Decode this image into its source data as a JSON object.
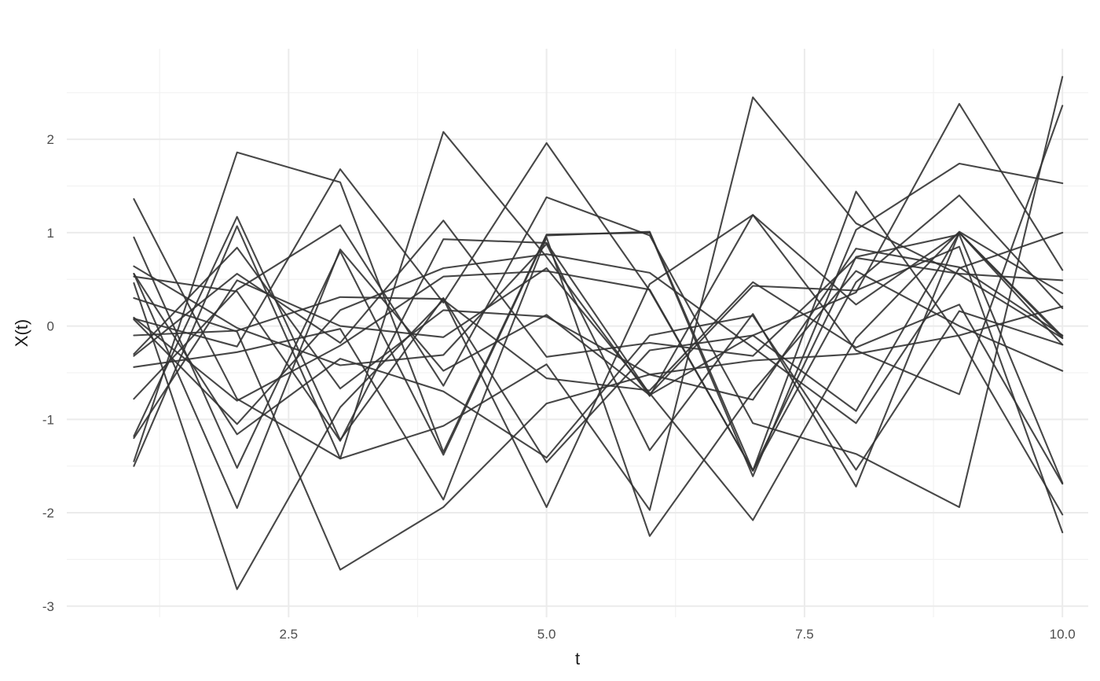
{
  "chart_data": {
    "type": "line",
    "title": "",
    "xlabel": "t",
    "ylabel": "X(t)",
    "xlim": [
      0.35,
      10.25
    ],
    "ylim": [
      -3.12,
      2.97
    ],
    "x_ticks": [
      2.5,
      5.0,
      7.5,
      10.0
    ],
    "x_tick_labels": [
      "2.5",
      "5.0",
      "7.5",
      "10.0"
    ],
    "y_ticks": [
      -3,
      -2,
      -1,
      0,
      1,
      2
    ],
    "y_tick_labels": [
      "-3",
      "-2",
      "-1",
      "0",
      "1",
      "2"
    ],
    "grid": true,
    "legend": "none",
    "line_color": "#333333",
    "line_opacity": 0.9,
    "x": [
      1,
      2,
      3,
      4,
      5,
      6,
      7,
      8,
      9,
      10
    ],
    "series": [
      {
        "values": [
          1.36,
          -0.78,
          -1.42,
          -1.07,
          -0.41,
          -1.97,
          2.45,
          1.1,
          0.55,
          -0.13
        ]
      },
      {
        "values": [
          0.95,
          -1.52,
          0.8,
          -1.38,
          0.97,
          1.01,
          -1.55,
          1.44,
          -0.12,
          -2.02
        ]
      },
      {
        "values": [
          -1.5,
          1.07,
          -1.42,
          2.08,
          0.74,
          -0.75,
          1.19,
          0.23,
          1.0,
          -0.2
        ]
      },
      {
        "values": [
          0.08,
          -0.22,
          1.68,
          0.25,
          1.96,
          0.38,
          -1.55,
          0.74,
          0.98,
          -1.68
        ]
      },
      {
        "values": [
          -1.45,
          1.86,
          1.54,
          -1.35,
          0.98,
          1.0,
          -1.61,
          1.03,
          1.74,
          1.53
        ]
      },
      {
        "values": [
          -1.18,
          1.17,
          -1.22,
          0.3,
          -1.46,
          -0.26,
          -0.1,
          0.36,
          2.38,
          0.6
        ]
      },
      {
        "values": [
          0.53,
          0.37,
          -1.23,
          0.93,
          0.89,
          -0.73,
          0.43,
          0.38,
          0.85,
          -2.21
        ]
      },
      {
        "values": [
          -0.32,
          0.56,
          -0.18,
          1.13,
          -0.33,
          -0.18,
          -0.32,
          0.73,
          0.56,
          0.49
        ]
      },
      {
        "values": [
          0.56,
          -1.95,
          0.82,
          -0.48,
          0.12,
          -0.74,
          -0.1,
          -0.91,
          1.0,
          -0.11
        ]
      },
      {
        "values": [
          0.09,
          -0.8,
          -0.21,
          0.53,
          0.59,
          0.39,
          -1.55,
          0.47,
          1.4,
          0.19
        ]
      },
      {
        "values": [
          -0.1,
          -0.05,
          0.31,
          0.29,
          -1.94,
          0.45,
          1.19,
          -0.26,
          -0.73,
          2.36
        ]
      },
      {
        "values": [
          0.3,
          -0.06,
          -2.61,
          -1.94,
          -0.83,
          -0.52,
          -0.37,
          -0.3,
          -0.1,
          0.21
        ]
      },
      {
        "values": [
          -0.78,
          0.39,
          1.08,
          -0.64,
          1.38,
          0.97,
          -1.04,
          -1.37,
          -1.94,
          2.67
        ]
      },
      {
        "values": [
          0.64,
          -0.02,
          -0.42,
          -0.31,
          0.88,
          -1.33,
          0.13,
          -1.72,
          1.0,
          -0.13
        ]
      },
      {
        "values": [
          0.07,
          -1.05,
          0.17,
          0.62,
          0.77,
          0.57,
          -0.23,
          -1.04,
          0.62,
          1.0
        ]
      },
      {
        "values": [
          -0.3,
          0.84,
          -0.67,
          0.17,
          0.1,
          -0.52,
          -0.79,
          0.83,
          0.63,
          -0.1
        ]
      },
      {
        "values": [
          0.46,
          -2.82,
          -0.87,
          0.28,
          -0.56,
          -0.69,
          0.47,
          -0.23,
          0.23,
          -1.69
        ]
      },
      {
        "values": [
          -0.44,
          -0.28,
          -0.03,
          -1.86,
          0.95,
          -2.25,
          -0.7,
          0.59,
          0.0,
          -0.48
        ]
      },
      {
        "values": [
          -1.2,
          0.49,
          0.0,
          -0.12,
          0.62,
          -0.72,
          -2.08,
          -0.13,
          1.01,
          0.35
        ]
      },
      {
        "values": [
          0.56,
          -1.16,
          -0.35,
          -0.7,
          -1.41,
          -0.1,
          0.11,
          -1.54,
          0.16,
          -0.2
        ]
      }
    ]
  }
}
